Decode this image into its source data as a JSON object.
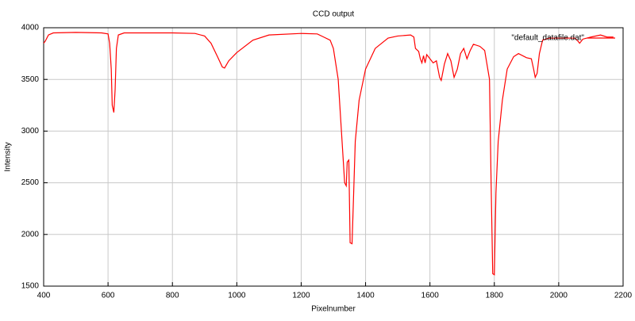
{
  "chart_data": {
    "type": "line",
    "title": "CCD output",
    "x_label": "Pixelnumber",
    "y_label": "Intensity",
    "x": [
      400,
      405,
      415,
      430,
      500,
      580,
      600,
      605,
      610,
      613,
      618,
      622,
      626,
      632,
      650,
      800,
      870,
      900,
      920,
      940,
      955,
      962,
      975,
      1000,
      1050,
      1100,
      1200,
      1250,
      1270,
      1290,
      1300,
      1315,
      1325,
      1335,
      1340,
      1343,
      1348,
      1352,
      1358,
      1362,
      1368,
      1380,
      1400,
      1430,
      1470,
      1500,
      1540,
      1550,
      1555,
      1565,
      1570,
      1575,
      1580,
      1585,
      1590,
      1600,
      1610,
      1620,
      1630,
      1635,
      1645,
      1655,
      1665,
      1675,
      1685,
      1695,
      1705,
      1715,
      1725,
      1735,
      1755,
      1770,
      1785,
      1790,
      1795,
      1800,
      1805,
      1812,
      1825,
      1840,
      1860,
      1875,
      1900,
      1915,
      1922,
      1927,
      1933,
      1940,
      1950,
      1970,
      2050,
      2060,
      2065,
      2075,
      2100,
      2130,
      2150,
      2170
    ],
    "series": [
      {
        "name": "\"default_datafile.dat\"",
        "color": "#ff0000",
        "values": [
          3850,
          3870,
          3930,
          3950,
          3955,
          3950,
          3940,
          3850,
          3600,
          3250,
          3180,
          3400,
          3800,
          3930,
          3950,
          3950,
          3945,
          3920,
          3850,
          3720,
          3620,
          3610,
          3680,
          3760,
          3880,
          3930,
          3945,
          3940,
          3910,
          3880,
          3800,
          3500,
          3000,
          2500,
          2470,
          2700,
          2720,
          1920,
          1910,
          2300,
          2900,
          3300,
          3600,
          3800,
          3900,
          3920,
          3930,
          3910,
          3800,
          3770,
          3700,
          3660,
          3730,
          3660,
          3740,
          3700,
          3660,
          3680,
          3520,
          3490,
          3650,
          3750,
          3680,
          3520,
          3600,
          3750,
          3800,
          3700,
          3780,
          3840,
          3820,
          3780,
          3500,
          2500,
          1620,
          1610,
          2400,
          2900,
          3300,
          3600,
          3720,
          3750,
          3710,
          3700,
          3600,
          3520,
          3560,
          3750,
          3880,
          3900,
          3900,
          3870,
          3850,
          3890,
          3910,
          3930,
          3910,
          3910
        ]
      }
    ],
    "xlim": [
      400,
      2200
    ],
    "xticks": [
      400,
      600,
      800,
      1000,
      1200,
      1400,
      1600,
      1800,
      2000,
      2200
    ],
    "ylim": [
      1500,
      4000
    ],
    "yticks": [
      1500,
      2000,
      2500,
      3000,
      3500,
      4000
    ],
    "grid": true,
    "legend": "top right"
  }
}
